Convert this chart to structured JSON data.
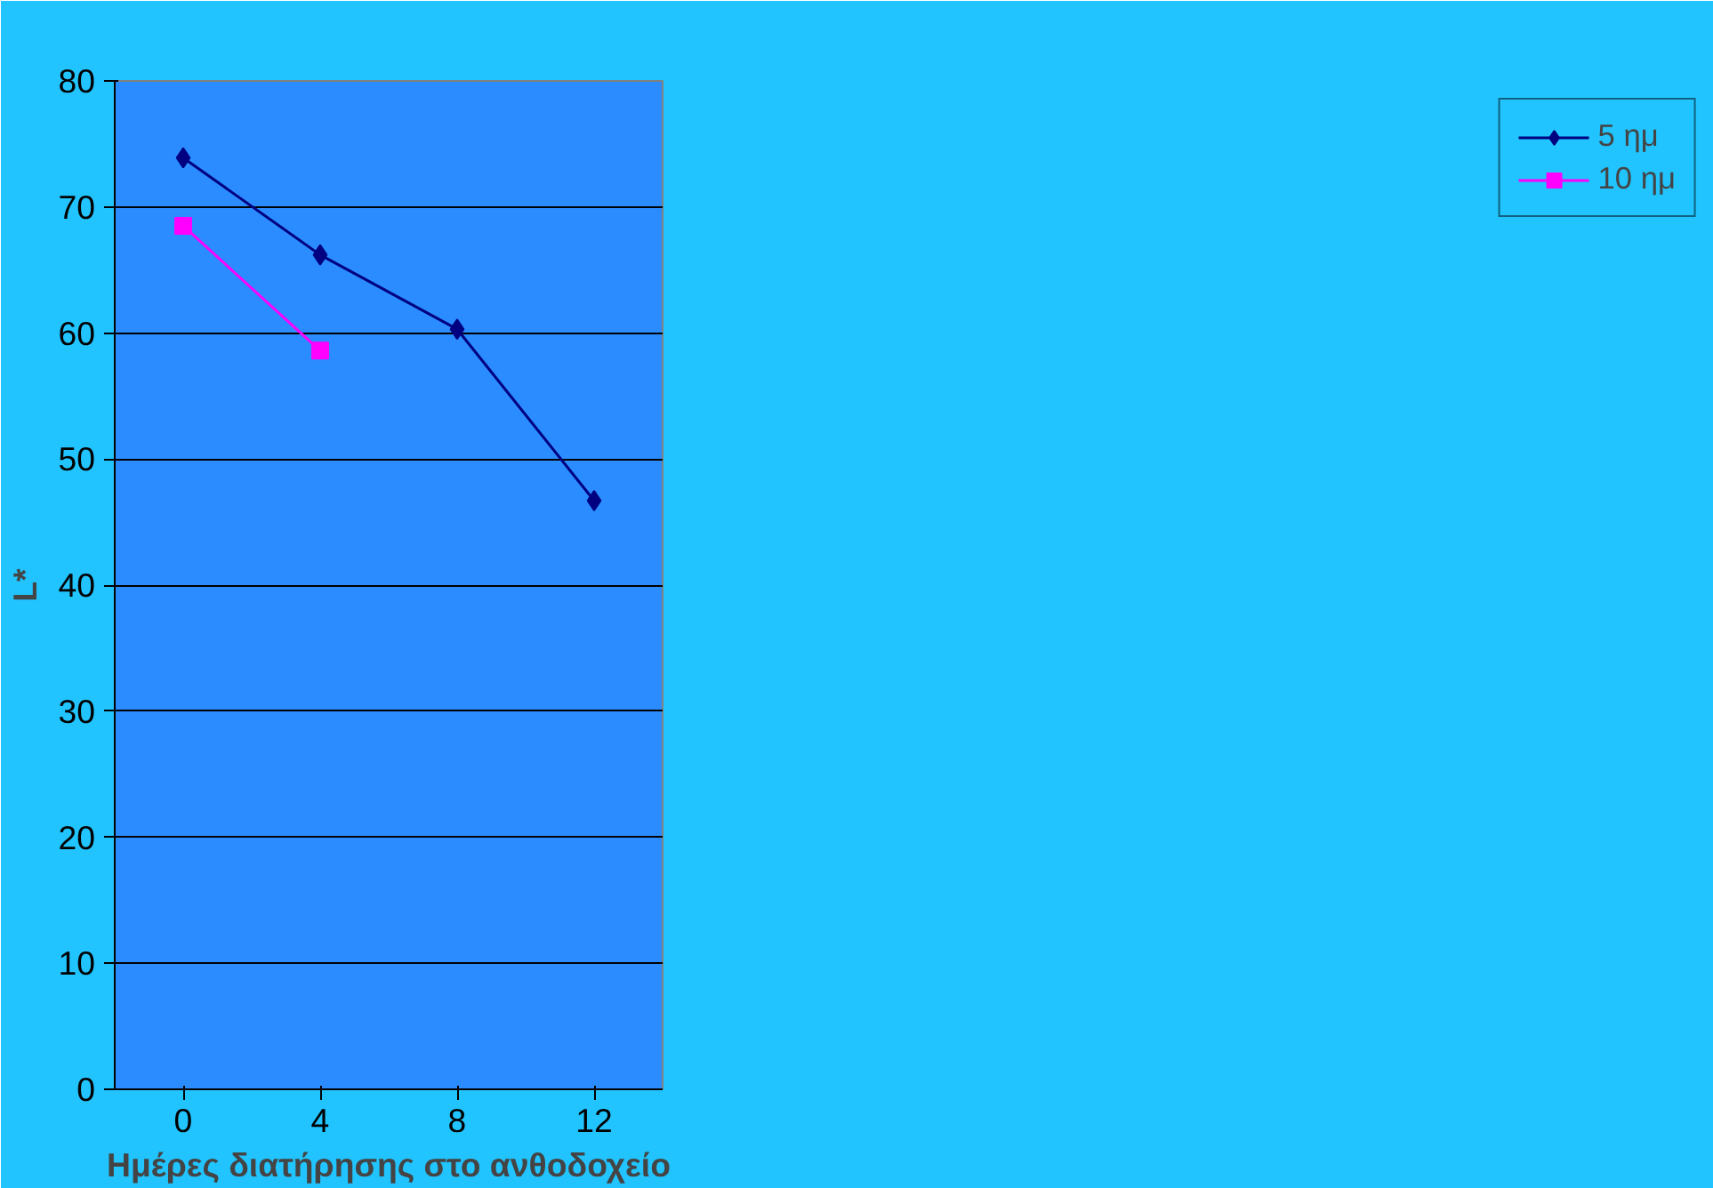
{
  "chart_data": {
    "type": "line",
    "xlabel": "Ημέρες διατήρησης στο ανθοδοχείο",
    "ylabel": "L*",
    "categories": [
      "0",
      "4",
      "8",
      "12"
    ],
    "series": [
      {
        "name": "5 ημ",
        "color": "#000080",
        "marker": "diamond",
        "values": [
          73.9,
          66.2,
          60.3,
          46.7
        ]
      },
      {
        "name": "10 ημ",
        "color": "#ff00ff",
        "marker": "square",
        "values": [
          68.5,
          58.6,
          null,
          null
        ]
      }
    ],
    "ylim": [
      0,
      80
    ],
    "yticks": [
      0,
      10,
      20,
      30,
      40,
      50,
      60,
      70,
      80
    ],
    "grid": "y",
    "legend": "right",
    "line_style": "solid"
  }
}
